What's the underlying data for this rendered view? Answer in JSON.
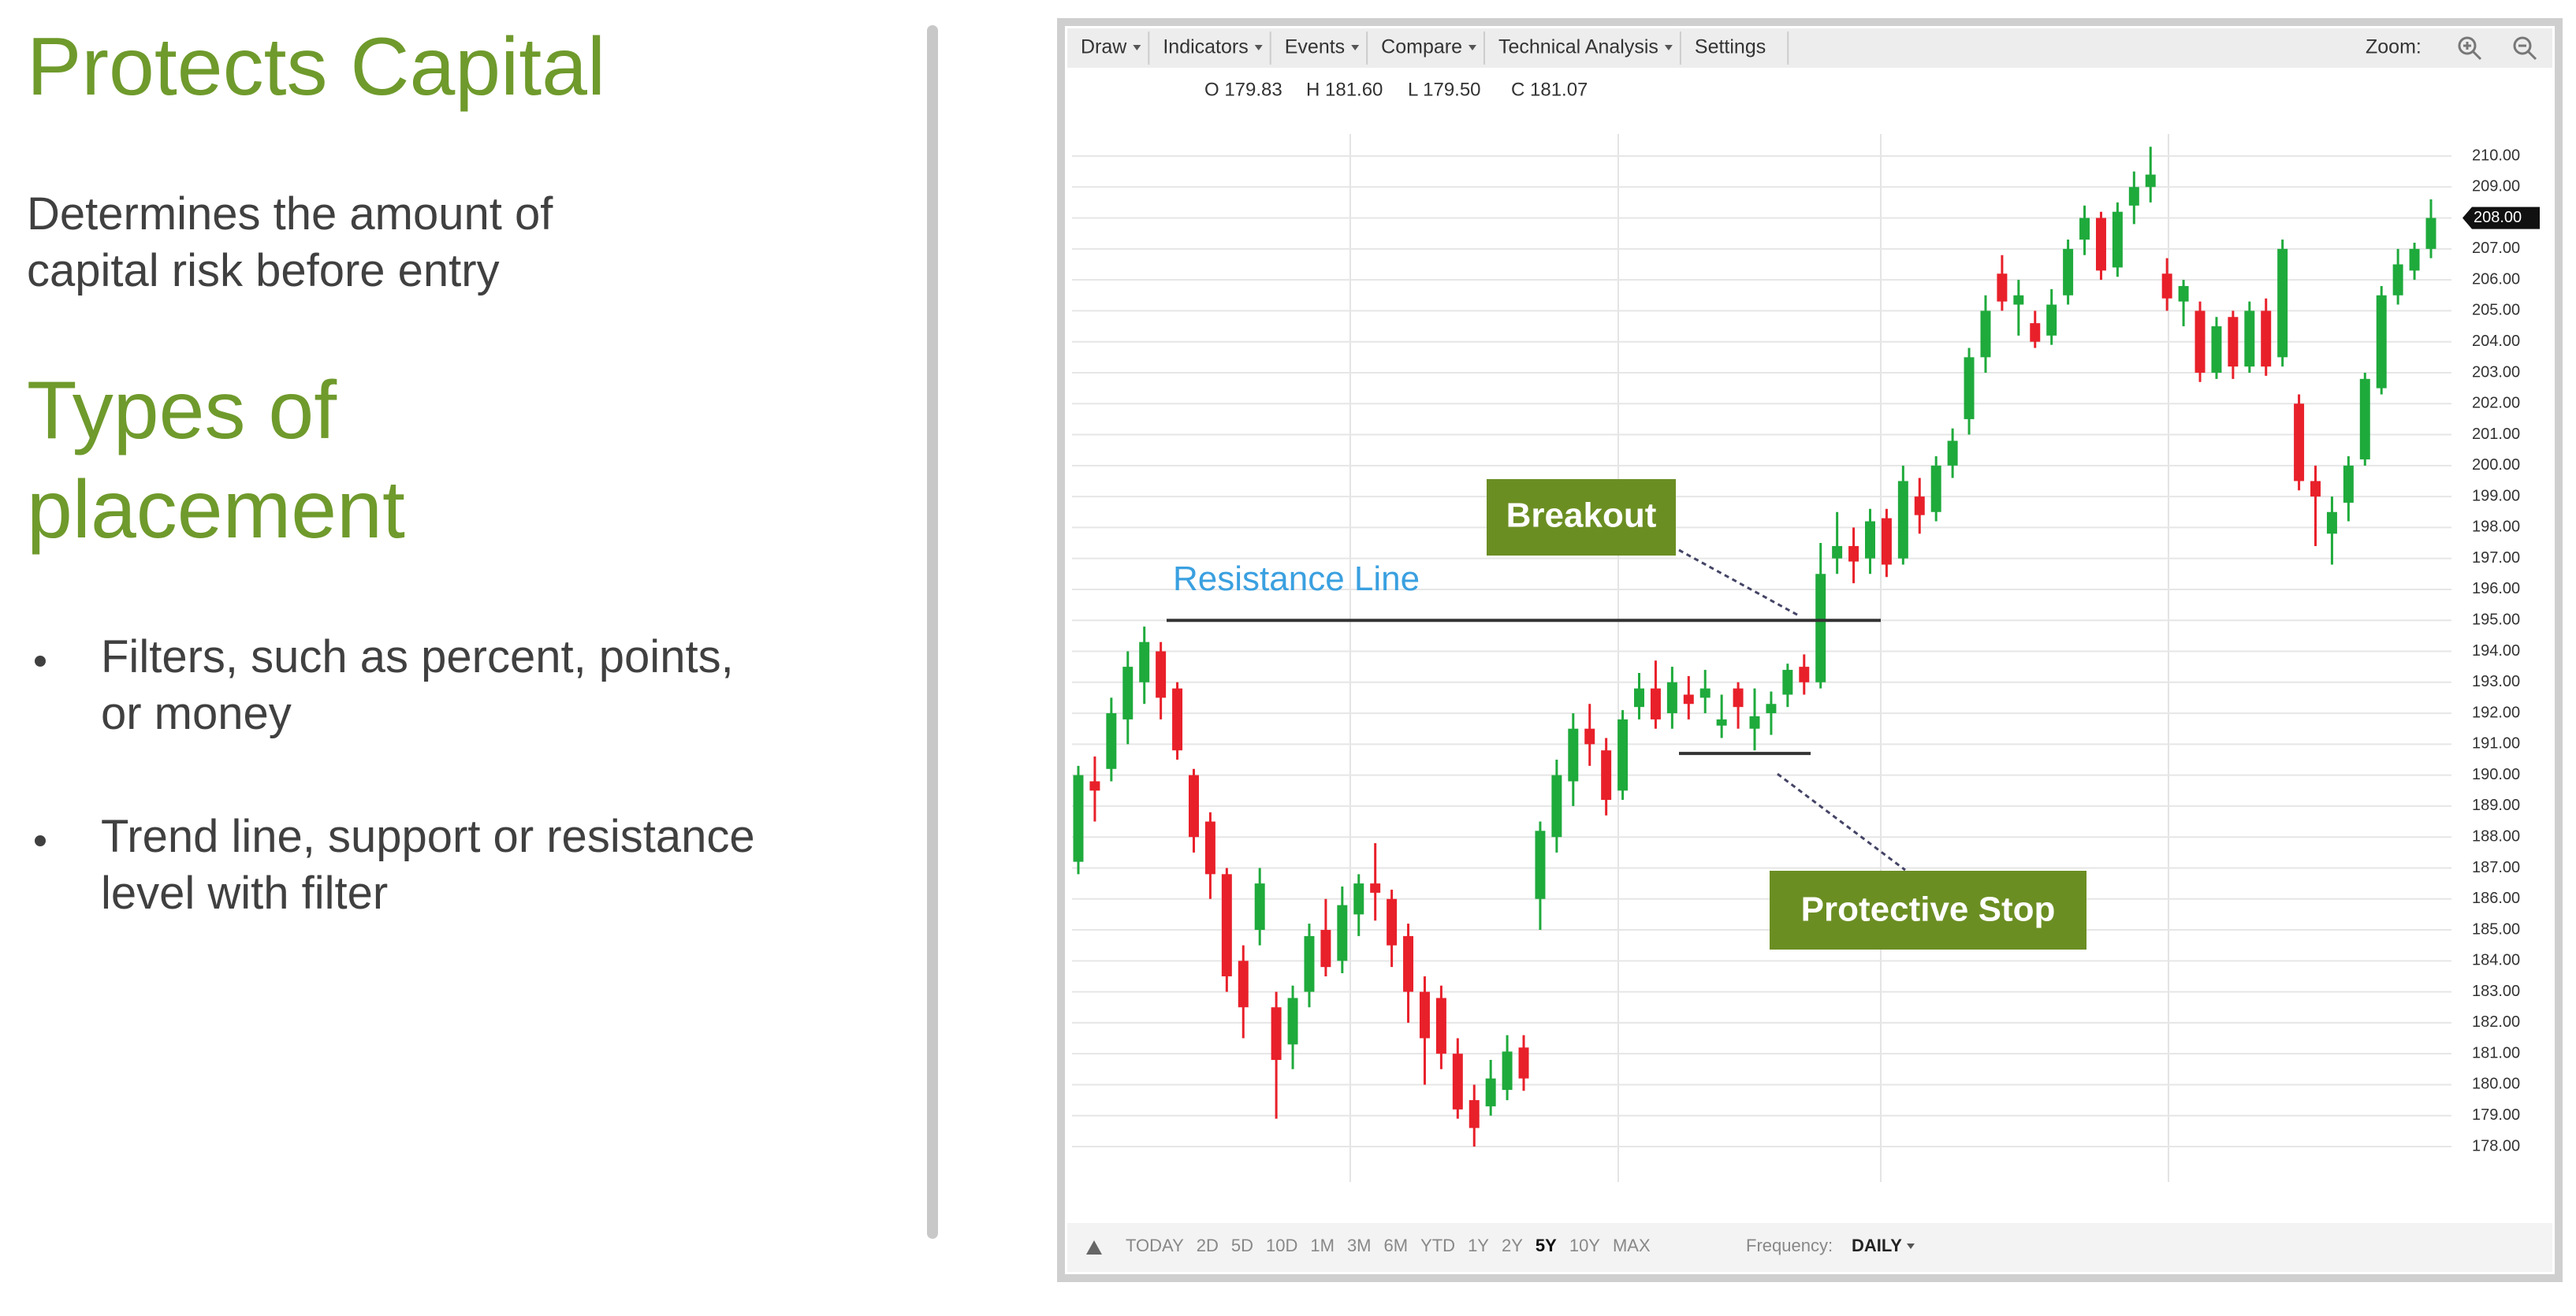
{
  "slide": {
    "title": "Protects Capital",
    "subtitle": "Determines the amount of capital risk before entry",
    "section_title": "Types of placement",
    "bullets": [
      "Filters, such as percent, points, or money",
      "Trend line, support or resistance level with filter"
    ]
  },
  "toolbar": {
    "menus": [
      "Draw",
      "Indicators",
      "Events",
      "Compare",
      "Technical Analysis",
      "Settings"
    ],
    "zoom": "Zoom:"
  },
  "ohlc_readout": [
    "O 179.83",
    "H 181.60",
    "L 179.50",
    "C 181.07"
  ],
  "range_bar": {
    "ranges": [
      "TODAY",
      "2D",
      "5D",
      "10D",
      "1M",
      "3M",
      "6M",
      "YTD",
      "1Y",
      "2Y",
      "5Y",
      "10Y",
      "MAX"
    ],
    "selected": "5Y",
    "frequency_label": "Frequency:",
    "frequency": "DAILY"
  },
  "chart_data": {
    "type": "candlestick",
    "up_color": "#1faa3c",
    "down_color": "#e8202a",
    "open": [
      187.2,
      189.8,
      190.2,
      191.8,
      193.0,
      194.0,
      192.8,
      190.0,
      188.5,
      186.8,
      184.0,
      185.0,
      182.5,
      181.3,
      183.0,
      185.0,
      184.0,
      185.5,
      186.5,
      186.0,
      184.8,
      183.0,
      182.8,
      181.0,
      179.5,
      179.3,
      179.83,
      181.2,
      186.0,
      188.0,
      189.8,
      191.5,
      190.8,
      189.5,
      192.2,
      192.8,
      192.0,
      192.6,
      192.5,
      191.6,
      192.8,
      191.5,
      192.0,
      192.6,
      193.5,
      193.0,
      197.0,
      197.4,
      197.0,
      198.3,
      197.0,
      199.0,
      198.5,
      200.0,
      201.5,
      203.5,
      206.2,
      205.2,
      204.6,
      204.2,
      205.5,
      207.3,
      208.0,
      206.4,
      208.4,
      209.0,
      206.2,
      205.3,
      205.0,
      203.0,
      204.8,
      203.2,
      205.0,
      203.5,
      202.0,
      199.5,
      197.8,
      198.8,
      200.2,
      202.5,
      205.5,
      206.3,
      207.0
    ],
    "high": [
      190.3,
      190.6,
      192.5,
      194.0,
      194.8,
      194.3,
      193.0,
      190.2,
      188.8,
      187.0,
      184.5,
      187.0,
      183.0,
      183.2,
      185.2,
      186.0,
      186.4,
      186.8,
      187.8,
      186.3,
      185.2,
      183.5,
      183.2,
      181.5,
      180.0,
      180.8,
      181.6,
      181.6,
      188.5,
      190.5,
      192.0,
      192.3,
      191.2,
      192.1,
      193.3,
      193.7,
      193.5,
      193.2,
      193.4,
      192.6,
      193.0,
      192.8,
      192.7,
      193.6,
      193.9,
      197.5,
      198.5,
      198.0,
      198.6,
      198.6,
      200.0,
      199.6,
      200.3,
      201.2,
      203.8,
      205.5,
      206.8,
      206.0,
      205.0,
      205.7,
      207.3,
      208.4,
      208.2,
      208.5,
      209.5,
      210.3,
      206.7,
      206.0,
      205.3,
      204.8,
      205.0,
      205.3,
      205.4,
      207.3,
      202.3,
      200.0,
      199.0,
      200.3,
      203.0,
      205.8,
      207.0,
      207.2,
      208.6
    ],
    "low": [
      186.8,
      188.5,
      189.8,
      191.0,
      192.3,
      191.8,
      190.5,
      187.5,
      186.0,
      183.0,
      181.5,
      184.5,
      178.9,
      180.5,
      182.5,
      183.5,
      183.6,
      184.8,
      185.3,
      183.8,
      182.0,
      180.0,
      180.5,
      178.9,
      178.0,
      179.0,
      179.5,
      179.8,
      185.0,
      187.5,
      189.0,
      190.3,
      188.7,
      189.2,
      191.8,
      191.5,
      191.5,
      191.8,
      192.0,
      191.2,
      191.5,
      190.8,
      191.3,
      192.2,
      192.6,
      192.8,
      196.5,
      196.2,
      196.5,
      196.4,
      196.8,
      197.8,
      198.2,
      199.6,
      201.0,
      203.0,
      205.0,
      204.2,
      203.8,
      203.9,
      205.2,
      206.8,
      206.0,
      206.1,
      207.8,
      208.5,
      205.0,
      204.5,
      202.7,
      202.8,
      202.8,
      203.0,
      202.9,
      203.2,
      199.2,
      197.4,
      196.8,
      198.2,
      200.0,
      202.3,
      205.2,
      206.0,
      206.7
    ],
    "close": [
      190.0,
      189.5,
      192.0,
      193.5,
      194.3,
      192.5,
      190.8,
      188.0,
      186.8,
      183.5,
      182.5,
      186.5,
      180.8,
      182.8,
      184.8,
      183.8,
      185.8,
      186.5,
      186.2,
      184.5,
      183.0,
      181.5,
      181.0,
      179.2,
      178.6,
      180.2,
      181.07,
      180.2,
      188.2,
      190.0,
      191.5,
      191.0,
      189.2,
      191.8,
      192.8,
      191.8,
      193.0,
      192.3,
      192.8,
      191.8,
      192.2,
      191.9,
      192.3,
      193.4,
      193.0,
      196.5,
      197.4,
      196.9,
      198.2,
      196.8,
      199.5,
      198.4,
      200.0,
      200.8,
      203.5,
      205.0,
      205.3,
      205.5,
      204.0,
      205.2,
      207.0,
      208.0,
      206.3,
      208.2,
      209.0,
      209.4,
      205.4,
      205.8,
      203.0,
      204.5,
      203.2,
      205.0,
      203.2,
      207.0,
      199.5,
      199.0,
      198.5,
      200.0,
      202.8,
      205.5,
      206.5,
      207.0,
      208.0
    ],
    "ylim": [
      178,
      210
    ],
    "yticks": [
      {
        "value": 178,
        "label": "178.00"
      },
      {
        "value": 179,
        "label": "179.00"
      },
      {
        "value": 180,
        "label": "180.00"
      },
      {
        "value": 181,
        "label": "181.00"
      },
      {
        "value": 182,
        "label": "182.00"
      },
      {
        "value": 183,
        "label": "183.00"
      },
      {
        "value": 184,
        "label": "184.00"
      },
      {
        "value": 185,
        "label": "185.00"
      },
      {
        "value": 186,
        "label": "186.00"
      },
      {
        "value": 187,
        "label": "187.00"
      },
      {
        "value": 188,
        "label": "188.00"
      },
      {
        "value": 189,
        "label": "189.00"
      },
      {
        "value": 190,
        "label": "190.00"
      },
      {
        "value": 191,
        "label": "191.00"
      },
      {
        "value": 192,
        "label": "192.00"
      },
      {
        "value": 193,
        "label": "193.00"
      },
      {
        "value": 194,
        "label": "194.00"
      },
      {
        "value": 195,
        "label": "195.00"
      },
      {
        "value": 196,
        "label": "196.00"
      },
      {
        "value": 197,
        "label": "197.00"
      },
      {
        "value": 198,
        "label": "198.00"
      },
      {
        "value": 199,
        "label": "199.00"
      },
      {
        "value": 200,
        "label": "200.00"
      },
      {
        "value": 201,
        "label": "201.00"
      },
      {
        "value": 202,
        "label": "202.00"
      },
      {
        "value": 203,
        "label": "203.00"
      },
      {
        "value": 204,
        "label": "204.00"
      },
      {
        "value": 205,
        "label": "205.00"
      },
      {
        "value": 206,
        "label": "206.00"
      },
      {
        "value": 207,
        "label": "207.00"
      },
      {
        "value": 208,
        "label": "208.00"
      },
      {
        "value": 209,
        "label": "209.00"
      },
      {
        "value": 210,
        "label": "210.00"
      }
    ],
    "grid": true,
    "last_price": {
      "value": 208,
      "label": "208.00"
    },
    "resistance": {
      "label": "Resistance Line",
      "level": 195
    },
    "breakout": {
      "label": "Breakout"
    },
    "stop": {
      "label": "Protective Stop",
      "level": 190.7
    }
  }
}
